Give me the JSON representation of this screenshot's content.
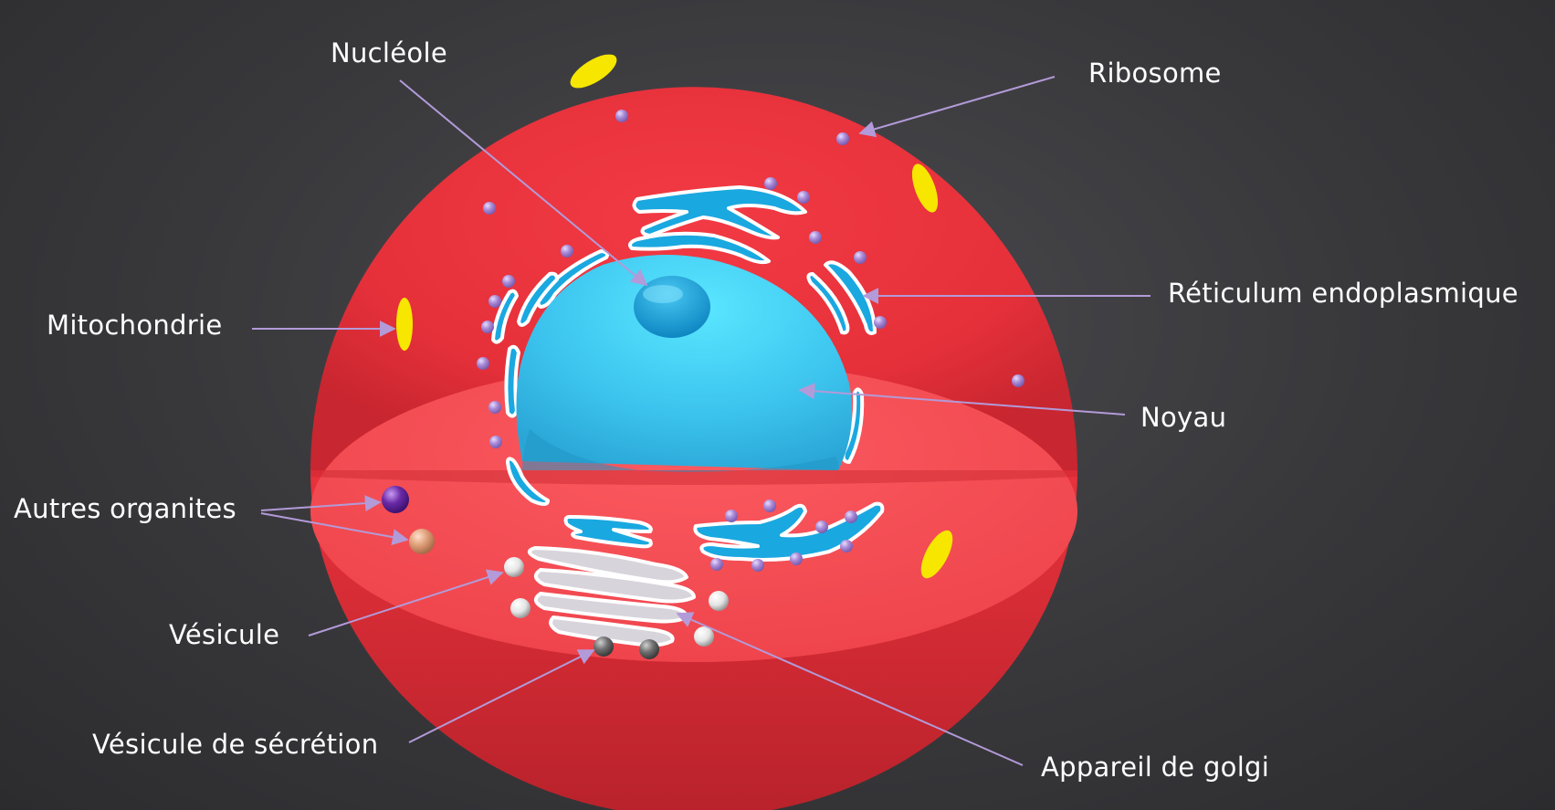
{
  "labels": {
    "nucleole": "Nucléole",
    "ribosome": "Ribosome",
    "reticulum": "Réticulum endoplasmique",
    "mitochondrie": "Mitochondrie",
    "noyau": "Noyau",
    "autres_organites": "Autres organites",
    "vesicule": "Vésicule",
    "vesicule_secretion": "Vésicule de sécrétion",
    "appareil_golgi": "Appareil de golgi"
  },
  "colors": {
    "background": "#38383b",
    "cytoplasm": "#e8323c",
    "cut_surface": "#f04a52",
    "nucleus": "#3cc4ee",
    "nucleolus": "#1a9fd8",
    "reticulum": "#1aa8e0",
    "mitochondria": "#f6e600",
    "ribosome": "#a98ad6",
    "leader_line": "#b39ad8",
    "golgi": "#d8d4dc",
    "label_text": "#ffffff"
  }
}
